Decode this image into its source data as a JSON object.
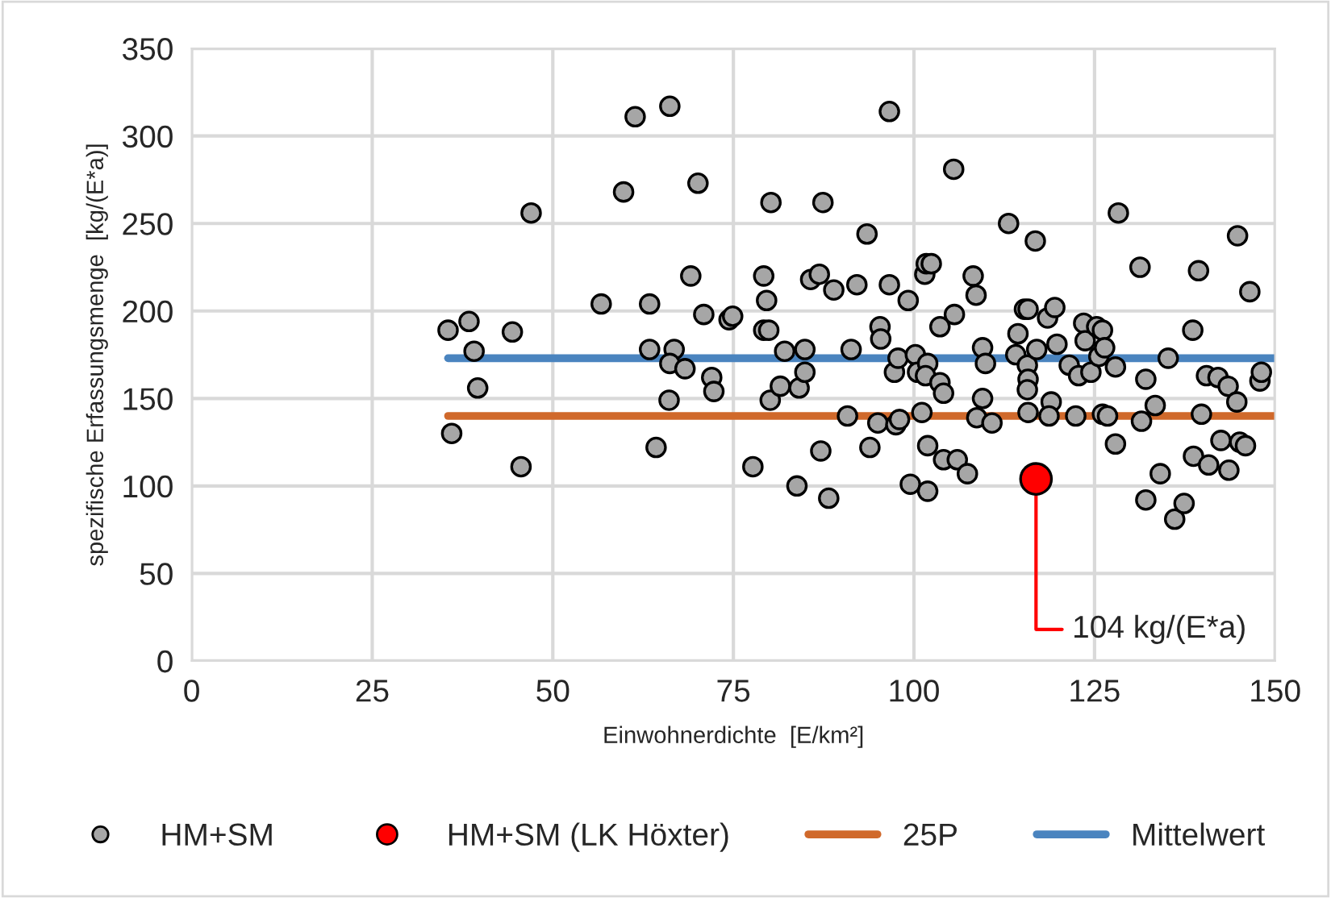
{
  "chart_data": {
    "type": "scatter",
    "xlabel": "Einwohnerdichte  [E/km²]",
    "ylabel": "spezifische Erfassungsmenge  [kg/(E*a)]",
    "xlim": [
      0,
      150
    ],
    "xticks": [
      0,
      25,
      50,
      75,
      100,
      125,
      150
    ],
    "ylim": [
      0,
      350
    ],
    "yticks": [
      0,
      50,
      100,
      150,
      200,
      250,
      300,
      350
    ],
    "grid": true,
    "legend": "bottom",
    "series": [
      {
        "name": "HM+SM",
        "marker": "circle",
        "color": "#a6a6a6",
        "x": [
          35.5,
          38.4,
          39.1,
          39.6,
          36.0,
          44.4,
          45.6,
          47.0,
          56.7,
          59.8,
          61.4,
          66.2,
          63.4,
          63.4,
          64.3,
          66.8,
          66.2,
          66.1,
          68.3,
          69.1,
          70.1,
          70.9,
          72.0,
          72.3,
          74.4,
          74.9,
          77.7,
          79.2,
          79.6,
          79.2,
          79.9,
          80.1,
          80.2,
          82.1,
          81.5,
          84.1,
          84.9,
          84.9,
          83.8,
          85.7,
          86.9,
          87.4,
          87.1,
          88.2,
          88.9,
          91.3,
          90.8,
          92.1,
          93.5,
          93.9,
          95.0,
          95.3,
          95.4,
          96.6,
          96.6,
          97.3,
          97.5,
          98.0,
          97.8,
          99.2,
          99.5,
          100.2,
          100.5,
          101.1,
          101.5,
          101.7,
          102.4,
          101.9,
          101.6,
          101.9,
          101.9,
          103.6,
          103.6,
          104.1,
          104.1,
          105.6,
          105.5,
          106.0,
          107.4,
          108.2,
          108.6,
          109.5,
          109.9,
          109.5,
          108.7,
          110.8,
          113.1,
          114.4,
          114.1,
          115.3,
          115.8,
          115.7,
          115.8,
          115.7,
          115.8,
          116.8,
          117.0,
          118.5,
          119.5,
          119.8,
          119.0,
          118.7,
          121.5,
          122.4,
          122.8,
          123.5,
          123.7,
          124.5,
          125.3,
          125.6,
          126.1,
          126.4,
          126.1,
          126.8,
          127.9,
          127.9,
          128.3,
          131.3,
          132.1,
          131.5,
          132.1,
          133.4,
          134.1,
          135.2,
          136.1,
          137.4,
          138.6,
          139.4,
          138.7,
          139.8,
          140.5,
          142.1,
          140.8,
          142.5,
          143.5,
          143.6,
          144.8,
          144.7,
          145.1,
          145.9,
          146.5,
          147.9,
          148.1
        ],
        "values": [
          189,
          194,
          177,
          156,
          130,
          188,
          111,
          256,
          204,
          268,
          311,
          317,
          204,
          178,
          122,
          178,
          170,
          149,
          167,
          220,
          273,
          198,
          162,
          154,
          195,
          197,
          111,
          220,
          206,
          189,
          189,
          149,
          262,
          177,
          157,
          156,
          178,
          165,
          100,
          218,
          221,
          262,
          120,
          93,
          212,
          178,
          140,
          215,
          244,
          122,
          136,
          191,
          184,
          314,
          215,
          165,
          135,
          138,
          173,
          206,
          101,
          175,
          165,
          142,
          221,
          227,
          227,
          170,
          163,
          123,
          97,
          191,
          159,
          153,
          115,
          198,
          281,
          115,
          107,
          220,
          209,
          179,
          170,
          150,
          139,
          136,
          250,
          187,
          175,
          201,
          201,
          169,
          161,
          155,
          142,
          240,
          178,
          196,
          202,
          181,
          148,
          140,
          169,
          140,
          163,
          193,
          183,
          165,
          191,
          174,
          189,
          179,
          141,
          140,
          168,
          124,
          256,
          225,
          161,
          137,
          92,
          146,
          107,
          173,
          81,
          90,
          189,
          223,
          117,
          141,
          163,
          162,
          112,
          126,
          157,
          109,
          243,
          148,
          125,
          123,
          211,
          160,
          165
        ]
      },
      {
        "name": "HM+SM (LK Höxter)",
        "marker": "circle",
        "color": "#ff0000",
        "x": [
          116.9
        ],
        "values": [
          104
        ]
      },
      {
        "name": "25P",
        "type": "line",
        "color": "#d0692b",
        "x": [
          35.5,
          150
        ],
        "values": [
          140,
          140
        ]
      },
      {
        "name": "Mittelwert",
        "type": "line",
        "color": "#4a84bf",
        "x": [
          35.5,
          150
        ],
        "values": [
          173,
          173
        ]
      }
    ],
    "annotations": [
      {
        "text": "104 kg/(E*a)",
        "x": 116.9,
        "y": 104
      }
    ]
  }
}
